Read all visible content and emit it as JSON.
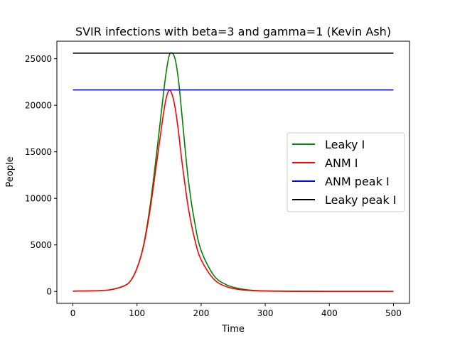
{
  "chart_data": {
    "type": "line",
    "title": "SVIR infections with beta=3 and gamma=1 (Kevin Ash)",
    "xlabel": "Time",
    "ylabel": "People",
    "xlim": [
      -25,
      525
    ],
    "ylim": [
      -1280,
      26880
    ],
    "xticks": [
      0,
      100,
      200,
      300,
      400,
      500
    ],
    "yticks": [
      0,
      5000,
      10000,
      15000,
      20000,
      25000
    ],
    "grid": false,
    "legend_position": "center-right",
    "series": [
      {
        "name": "Leaky I",
        "color": "#008000",
        "x": [
          0,
          40,
          60,
          80,
          90,
          100,
          110,
          120,
          130,
          140,
          145,
          150,
          155,
          160,
          165,
          170,
          180,
          190,
          200,
          220,
          240,
          260,
          280,
          300,
          340,
          400,
          500
        ],
        "y": [
          30,
          80,
          200,
          600,
          1150,
          2500,
          4900,
          9000,
          14500,
          20500,
          23300,
          25300,
          25600,
          24800,
          22500,
          19000,
          12000,
          7400,
          4400,
          1700,
          700,
          300,
          120,
          60,
          20,
          5,
          0
        ]
      },
      {
        "name": "ANM I",
        "color": "#ff0000",
        "x": [
          0,
          40,
          60,
          80,
          90,
          100,
          110,
          120,
          130,
          140,
          145,
          150,
          155,
          160,
          165,
          170,
          180,
          190,
          200,
          220,
          240,
          260,
          280,
          300,
          340,
          400,
          500
        ],
        "y": [
          30,
          80,
          200,
          600,
          1150,
          2500,
          4800,
          8600,
          13500,
          18500,
          20600,
          21600,
          21100,
          19500,
          17000,
          14000,
          9000,
          5600,
          3400,
          1300,
          500,
          200,
          80,
          40,
          10,
          3,
          0
        ]
      },
      {
        "name": "ANM peak I",
        "color": "#0000ff",
        "x": [
          0,
          500
        ],
        "y": [
          21650,
          21650
        ]
      },
      {
        "name": "Leaky peak I",
        "color": "#000000",
        "x": [
          0,
          500
        ],
        "y": [
          25600,
          25600
        ]
      }
    ]
  }
}
